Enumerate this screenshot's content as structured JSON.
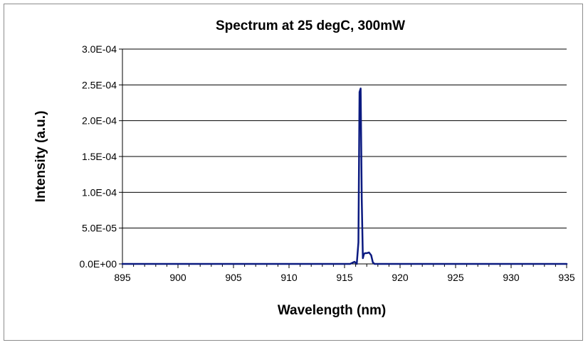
{
  "chart_data": {
    "type": "line",
    "title": "Spectrum at 25 degC, 300mW",
    "xlabel": "Wavelength (nm)",
    "ylabel": "Intensity (a.u.)",
    "xlim": [
      895,
      935
    ],
    "ylim": [
      0,
      0.0003
    ],
    "x_ticks": [
      895,
      900,
      905,
      910,
      915,
      920,
      925,
      930,
      935
    ],
    "x_tick_labels": [
      "895",
      "900",
      "905",
      "910",
      "915",
      "920",
      "925",
      "930",
      "935"
    ],
    "y_ticks": [
      0,
      5e-05,
      0.0001,
      0.00015,
      0.0002,
      0.00025,
      0.0003
    ],
    "y_tick_labels": [
      "0.0E+00",
      "5.0E-05",
      "1.0E-04",
      "1.5E-04",
      "2.0E-04",
      "2.5E-04",
      "3.0E-04"
    ],
    "grid": "horizontal",
    "legend": "none",
    "colors": {
      "series": "#0b1a80",
      "grid": "#000000",
      "axis": "#000000"
    },
    "series": [
      {
        "x": [
          895,
          910,
          915.5,
          915.9,
          916.1,
          916.25,
          916.35,
          916.45,
          916.55,
          916.65,
          916.75,
          916.85,
          917.0,
          917.2,
          917.4,
          917.55,
          917.7,
          918.0,
          920,
          935
        ],
        "y": [
          0,
          0,
          0,
          3e-06,
          0,
          3e-05,
          0.00024,
          0.000245,
          9e-05,
          8e-06,
          1.4e-05,
          1.5e-05,
          1.5e-05,
          1.6e-05,
          1.2e-05,
          2e-06,
          0,
          0,
          0,
          0
        ]
      }
    ]
  }
}
